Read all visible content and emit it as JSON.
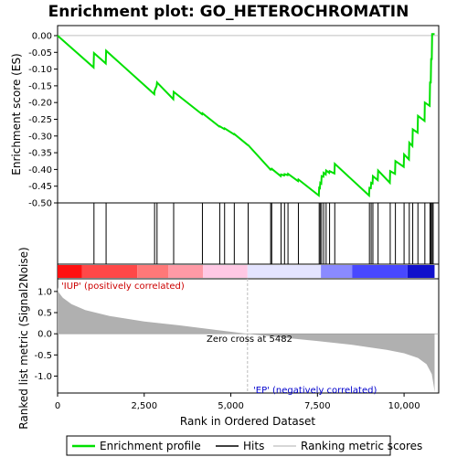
{
  "chart_data": {
    "type": "line",
    "title": "Enrichment plot: GO_HETEROCHROMATIN",
    "xlabel": "Rank in Ordered Dataset",
    "ylabel_top": "Enrichment score (ES)",
    "ylabel_bottom": "Ranked list metric (Signal2Noise)",
    "x_range": [
      0,
      11000
    ],
    "es_ylim": [
      -0.5,
      0.03
    ],
    "metric_ylim": [
      -1.4,
      1.3
    ],
    "x_ticks": [
      0,
      2500,
      5000,
      7500,
      10000
    ],
    "x_tick_labels": [
      "0",
      "2,500",
      "5,000",
      "7,500",
      "10,000"
    ],
    "es_ticks": [
      0.0,
      -0.05,
      -0.1,
      -0.15,
      -0.2,
      -0.25,
      -0.3,
      -0.35,
      -0.4,
      -0.45,
      -0.5
    ],
    "es_tick_labels": [
      "0.00",
      "-0.05",
      "-0.10",
      "-0.15",
      "-0.20",
      "-0.25",
      "-0.30",
      "-0.35",
      "-0.40",
      "-0.45",
      "-0.50"
    ],
    "metric_ticks": [
      1.0,
      0.5,
      0.0,
      -0.5,
      -1.0
    ],
    "metric_tick_labels": [
      "1.0",
      "0.5",
      "0.0",
      "-0.5",
      "-1.0"
    ],
    "n_genes": 10880,
    "zero_cross": 5482,
    "zero_cross_label": "Zero cross at 5482",
    "pos_label": "'IUP' (positively correlated)",
    "neg_label": "'EP' (negatively correlated)",
    "hits": [
      1050,
      1400,
      2800,
      2870,
      3350,
      4180,
      4680,
      4820,
      5100,
      5500,
      6150,
      6180,
      6450,
      6550,
      6650,
      6950,
      7550,
      7580,
      7620,
      7680,
      7750,
      7850,
      8000,
      9000,
      9050,
      9100,
      9250,
      9600,
      9750,
      10000,
      10150,
      10250,
      10400,
      10600,
      10750,
      10780,
      10810,
      10840
    ],
    "es_points": [
      [
        0,
        0.0
      ],
      [
        1040,
        -0.095
      ],
      [
        1050,
        -0.052
      ],
      [
        1390,
        -0.083
      ],
      [
        1400,
        -0.045
      ],
      [
        2790,
        -0.175
      ],
      [
        2800,
        -0.165
      ],
      [
        2860,
        -0.15
      ],
      [
        2870,
        -0.14
      ],
      [
        3340,
        -0.19
      ],
      [
        3350,
        -0.168
      ],
      [
        4170,
        -0.235
      ],
      [
        4180,
        -0.232
      ],
      [
        4670,
        -0.272
      ],
      [
        4680,
        -0.271
      ],
      [
        4810,
        -0.279
      ],
      [
        4820,
        -0.277
      ],
      [
        5090,
        -0.295
      ],
      [
        5100,
        -0.294
      ],
      [
        5490,
        -0.327
      ],
      [
        5500,
        -0.327
      ],
      [
        6140,
        -0.4
      ],
      [
        6150,
        -0.399
      ],
      [
        6170,
        -0.4
      ],
      [
        6180,
        -0.398
      ],
      [
        6440,
        -0.42
      ],
      [
        6450,
        -0.415
      ],
      [
        6540,
        -0.418
      ],
      [
        6550,
        -0.414
      ],
      [
        6640,
        -0.417
      ],
      [
        6650,
        -0.413
      ],
      [
        6940,
        -0.435
      ],
      [
        6950,
        -0.43
      ],
      [
        7540,
        -0.478
      ],
      [
        7550,
        -0.455
      ],
      [
        7570,
        -0.456
      ],
      [
        7580,
        -0.44
      ],
      [
        7610,
        -0.442
      ],
      [
        7620,
        -0.42
      ],
      [
        7670,
        -0.422
      ],
      [
        7680,
        -0.41
      ],
      [
        7740,
        -0.415
      ],
      [
        7750,
        -0.403
      ],
      [
        7840,
        -0.41
      ],
      [
        7850,
        -0.405
      ],
      [
        7990,
        -0.412
      ],
      [
        8000,
        -0.383
      ],
      [
        8990,
        -0.478
      ],
      [
        9000,
        -0.455
      ],
      [
        9040,
        -0.456
      ],
      [
        9050,
        -0.44
      ],
      [
        9090,
        -0.442
      ],
      [
        9100,
        -0.42
      ],
      [
        9240,
        -0.432
      ],
      [
        9250,
        -0.403
      ],
      [
        9590,
        -0.44
      ],
      [
        9600,
        -0.405
      ],
      [
        9740,
        -0.413
      ],
      [
        9750,
        -0.375
      ],
      [
        9990,
        -0.392
      ],
      [
        10000,
        -0.355
      ],
      [
        10140,
        -0.37
      ],
      [
        10150,
        -0.32
      ],
      [
        10240,
        -0.33
      ],
      [
        10250,
        -0.28
      ],
      [
        10390,
        -0.29
      ],
      [
        10400,
        -0.24
      ],
      [
        10590,
        -0.255
      ],
      [
        10600,
        -0.2
      ],
      [
        10740,
        -0.21
      ],
      [
        10750,
        -0.14
      ],
      [
        10770,
        -0.14
      ],
      [
        10780,
        -0.07
      ],
      [
        10800,
        -0.07
      ],
      [
        10810,
        0.005
      ],
      [
        10880,
        0.005
      ]
    ],
    "metric_profile": [
      [
        0,
        1.1
      ],
      [
        30,
        0.98
      ],
      [
        150,
        0.85
      ],
      [
        400,
        0.7
      ],
      [
        800,
        0.56
      ],
      [
        1500,
        0.42
      ],
      [
        2500,
        0.29
      ],
      [
        3500,
        0.2
      ],
      [
        4500,
        0.1
      ],
      [
        5482,
        0.0
      ],
      [
        6500,
        -0.09
      ],
      [
        7500,
        -0.17
      ],
      [
        8500,
        -0.26
      ],
      [
        9500,
        -0.38
      ],
      [
        10000,
        -0.46
      ],
      [
        10400,
        -0.57
      ],
      [
        10650,
        -0.72
      ],
      [
        10800,
        -0.95
      ],
      [
        10860,
        -1.25
      ],
      [
        10880,
        -1.38
      ]
    ],
    "color_bar": [
      [
        0,
        700,
        "#ff1010"
      ],
      [
        700,
        2300,
        "#ff4848"
      ],
      [
        2300,
        3200,
        "#ff7878"
      ],
      [
        3200,
        4200,
        "#ff9aa6"
      ],
      [
        4200,
        5482,
        "#ffc8e4"
      ],
      [
        5482,
        7600,
        "#e4e4ff"
      ],
      [
        7600,
        8500,
        "#8a8aff"
      ],
      [
        8500,
        10100,
        "#4848ff"
      ],
      [
        10100,
        10880,
        "#1010cc"
      ]
    ],
    "legend": [
      "Enrichment profile",
      "Hits",
      "Ranking metric scores"
    ],
    "colors": {
      "es_line": "#00e000",
      "hit": "#000000",
      "metric_fill": "#b0b0b0",
      "pos_text": "#cc0000",
      "neg_text": "#0000cc",
      "zero_line": "#bbbbbb"
    }
  }
}
